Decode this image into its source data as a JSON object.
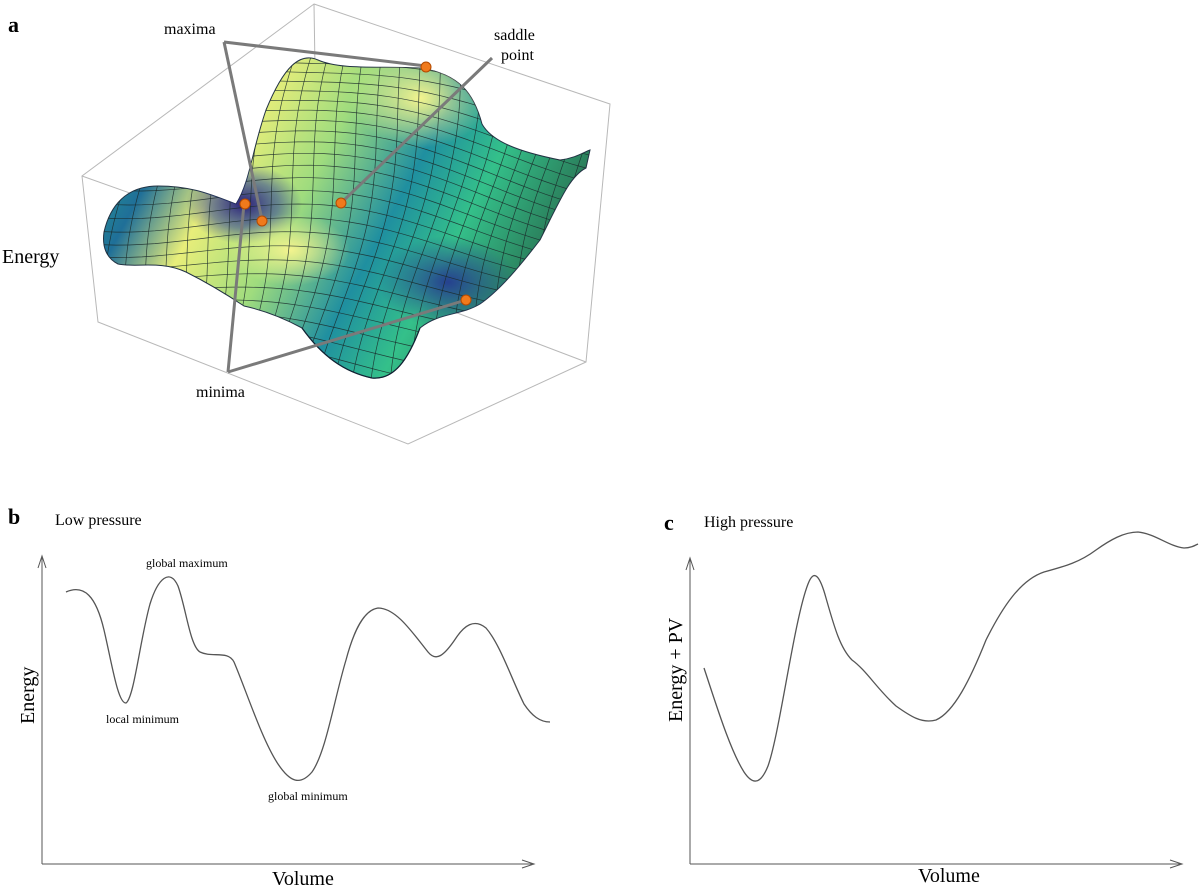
{
  "panel_a": {
    "label": "a",
    "z_axis_label": "Energy",
    "callouts": {
      "maxima": "maxima",
      "saddle_line1": "saddle",
      "saddle_line2": "point",
      "minima": "minima"
    },
    "colors": {
      "point": "#f07a1c",
      "low": "#2a1e78",
      "mid": "#24a08a",
      "high": "#f2f08a"
    }
  },
  "panel_b": {
    "label": "b",
    "title": "Low pressure",
    "ylabel": "Energy",
    "xlabel": "Volume",
    "annotations": {
      "global_maximum": "global maximum",
      "local_minimum": "local minimum",
      "global_minimum": "global minimum"
    }
  },
  "panel_c": {
    "label": "c",
    "title": "High pressure",
    "ylabel": "Energy + PV",
    "xlabel": "Volume"
  }
}
